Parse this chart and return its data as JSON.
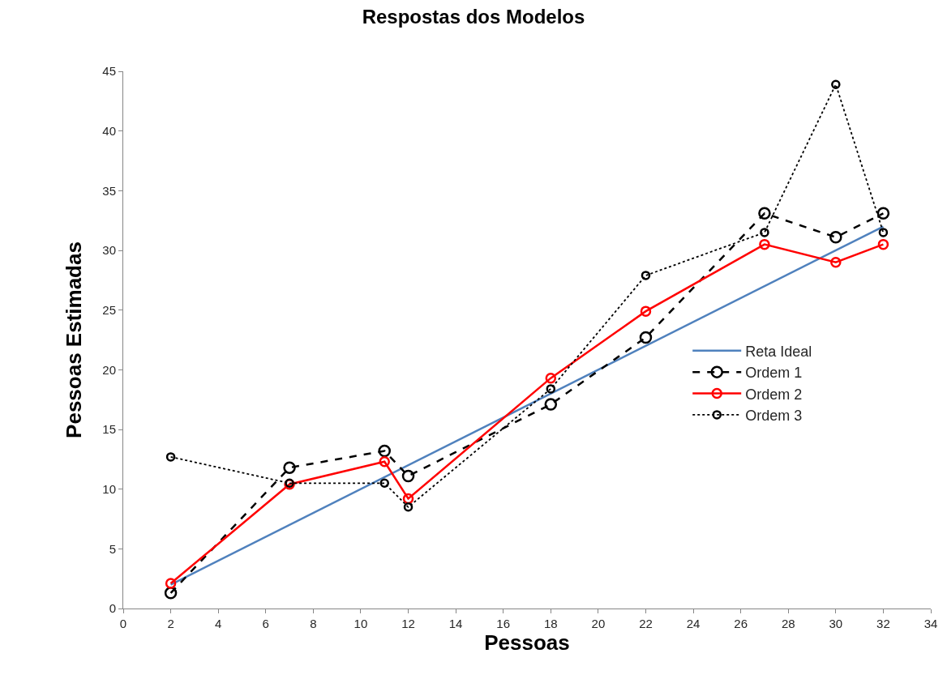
{
  "chart_data": {
    "type": "line",
    "title": "Respostas dos Modelos",
    "xlabel": "Pessoas",
    "ylabel": "Pessoas Estimadas",
    "xlim": [
      0,
      34
    ],
    "xticks": [
      0,
      2,
      4,
      6,
      8,
      10,
      12,
      14,
      16,
      18,
      20,
      22,
      24,
      26,
      28,
      30,
      32,
      34
    ],
    "ylim": [
      0,
      45
    ],
    "yticks": [
      0,
      5,
      10,
      15,
      20,
      25,
      30,
      35,
      40,
      45
    ],
    "legend": "right",
    "series": [
      {
        "name": "Reta Ideal",
        "color": "#4f81bd",
        "x": [
          2,
          32
        ],
        "values": [
          2,
          32
        ],
        "marker": "none",
        "line_style": "solid"
      },
      {
        "name": "Ordem 1",
        "color": "#000000",
        "x": [
          2,
          7,
          11,
          12,
          18,
          22,
          27,
          30,
          32
        ],
        "values": [
          1.3,
          11.8,
          13.2,
          11.1,
          17.1,
          22.7,
          33.1,
          31.1,
          33.1
        ],
        "marker": "circle",
        "line_style": "dashed"
      },
      {
        "name": "Ordem 2",
        "color": "#ff0000",
        "x": [
          2,
          7,
          11,
          12,
          18,
          22,
          27,
          30,
          32
        ],
        "values": [
          2.1,
          10.4,
          12.3,
          9.2,
          19.3,
          24.9,
          30.5,
          29.0,
          30.5
        ],
        "marker": "circle",
        "line_style": "solid"
      },
      {
        "name": "Ordem 3",
        "color": "#000000",
        "x": [
          2,
          7,
          11,
          12,
          18,
          22,
          27,
          30,
          32
        ],
        "values": [
          12.7,
          10.5,
          10.5,
          8.5,
          18.4,
          27.9,
          31.5,
          43.9,
          31.5
        ],
        "marker": "circle",
        "line_style": "dotted"
      }
    ]
  }
}
